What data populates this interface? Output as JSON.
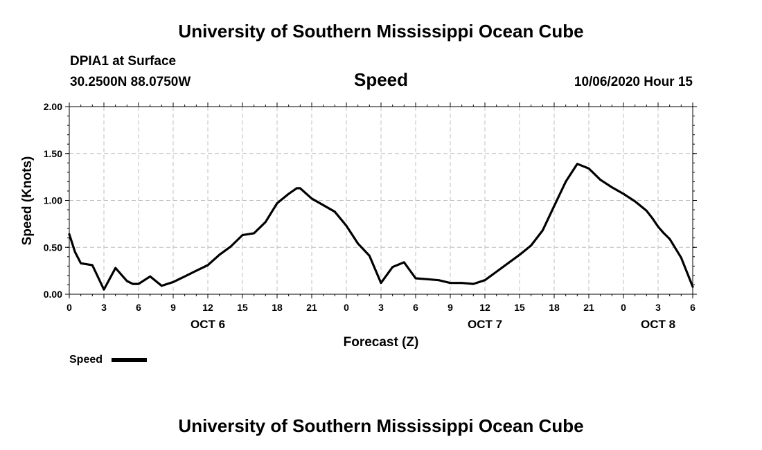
{
  "header": {
    "title": "University of Southern Mississippi Ocean Cube",
    "station": "DPIA1 at Surface",
    "coords": "30.2500N 88.0750W",
    "variable": "Speed",
    "forecast_time": "10/06/2020 Hour 15"
  },
  "footer": {
    "title": "University of Southern Mississippi Ocean Cube"
  },
  "legend": {
    "label": "Speed"
  },
  "colors": {
    "line": "#000000",
    "grid": "#bfbfbf",
    "frame": "#000000"
  },
  "chart_data": {
    "type": "line",
    "title": "Speed",
    "xlabel": "Forecast (Z)",
    "ylabel": "Speed (Knots)",
    "ylim": [
      0,
      2
    ],
    "xlim": [
      0,
      54
    ],
    "x_unit": "hours from 00Z OCT 6",
    "grid": true,
    "y_ticks": [
      "0.00",
      "0.50",
      "1.00",
      "1.50",
      "2.00"
    ],
    "x_ticks": [
      "0",
      "3",
      "6",
      "9",
      "12",
      "15",
      "18",
      "21",
      "0",
      "3",
      "6",
      "9",
      "12",
      "15",
      "18",
      "21",
      "0",
      "3",
      "6"
    ],
    "date_labels": [
      {
        "label": "OCT 6",
        "hour": 12
      },
      {
        "label": "OCT 7",
        "hour": 36
      },
      {
        "label": "OCT 8",
        "hour": 51
      }
    ],
    "series": [
      {
        "name": "Speed",
        "x": [
          0,
          0.5,
          1,
          2,
          3,
          4,
          5,
          5.5,
          6,
          7,
          8,
          9,
          10,
          11,
          12,
          13,
          14,
          15,
          16,
          17,
          18,
          19,
          19.7,
          20,
          21,
          22,
          23,
          24,
          25,
          26,
          27,
          28,
          29,
          30,
          31,
          32,
          33,
          34,
          35,
          36,
          37,
          38,
          39,
          40,
          41,
          42,
          43,
          44,
          45,
          46,
          47,
          48,
          49,
          50,
          50.5,
          51,
          51.5,
          52,
          53,
          54
        ],
        "values": [
          0.64,
          0.45,
          0.33,
          0.31,
          0.05,
          0.28,
          0.14,
          0.11,
          0.11,
          0.19,
          0.09,
          0.13,
          0.19,
          0.25,
          0.31,
          0.42,
          0.51,
          0.63,
          0.65,
          0.77,
          0.97,
          1.07,
          1.13,
          1.13,
          1.02,
          0.95,
          0.88,
          0.73,
          0.54,
          0.41,
          0.12,
          0.29,
          0.34,
          0.17,
          0.16,
          0.15,
          0.12,
          0.12,
          0.11,
          0.15,
          0.24,
          0.33,
          0.42,
          0.52,
          0.68,
          0.94,
          1.2,
          1.39,
          1.34,
          1.22,
          1.14,
          1.07,
          0.99,
          0.89,
          0.81,
          0.72,
          0.65,
          0.59,
          0.39,
          0.08
        ]
      }
    ]
  }
}
